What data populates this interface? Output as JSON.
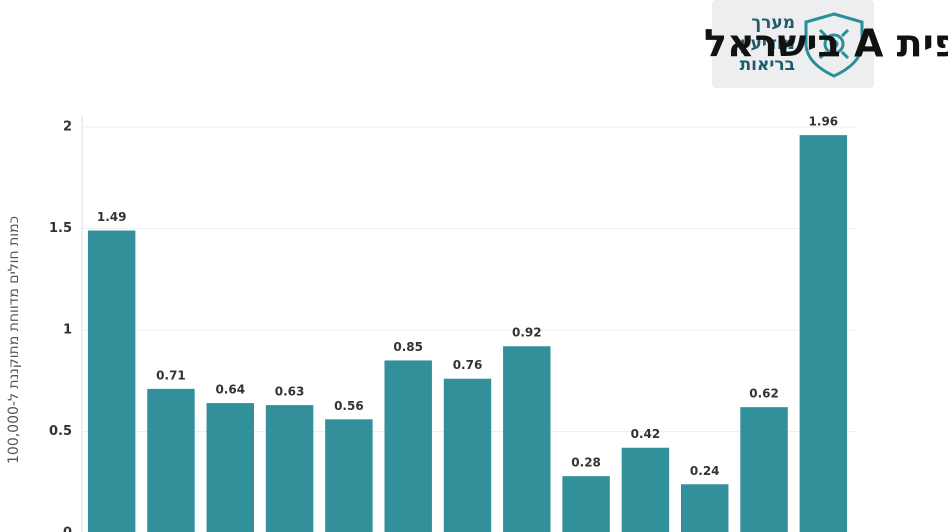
{
  "chart_data": {
    "type": "bar",
    "title": "תחלואת צהבת נגיפית A בישראל",
    "logo_lines": [
      "מערך",
      "מודיעין",
      "בריאות"
    ],
    "y_label": "כמות חולים מדווחת מתוקננת ל-100,000",
    "categories": [
      null,
      null,
      null,
      null,
      null,
      null,
      null,
      null,
      null,
      null,
      null,
      null,
      null
    ],
    "values": [
      1.49,
      0.71,
      0.64,
      0.63,
      0.56,
      0.85,
      0.76,
      0.92,
      0.28,
      0.42,
      0.24,
      0.62,
      1.96
    ],
    "color": "#32909a",
    "ylim": [
      0,
      2
    ],
    "yticks": [
      0,
      0.5,
      1,
      1.5,
      2
    ],
    "grid": true
  }
}
